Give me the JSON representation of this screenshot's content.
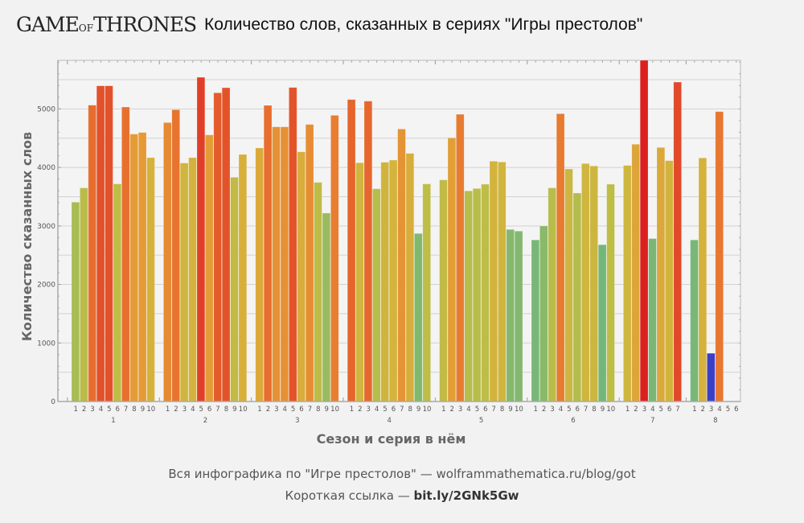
{
  "header": {
    "logo_text": "GAME OF THRONES",
    "title": "Количество слов, сказанных в сериях \"Игры престолов\""
  },
  "footer": {
    "line1": "Вся инфографика по \"Игре престолов\" — wolframmathematica.ru/blog/got",
    "line2_prefix": "Короткая ссылка — ",
    "line2_link": "bit.ly/2GNk5Gw"
  },
  "chart_data": {
    "type": "bar",
    "title": "Количество слов, сказанных в сериях \"Игры престолов\"",
    "xlabel": "Сезон и серия в нём",
    "ylabel": "Количество сказанных слов",
    "ylim": [
      0,
      5830
    ],
    "yticks": [
      0,
      1000,
      2000,
      3000,
      4000,
      5000
    ],
    "grid": true,
    "seasons": [
      {
        "label": "1",
        "episodes": [
          "1",
          "2",
          "3",
          "4",
          "5",
          "6",
          "7",
          "8",
          "9",
          "10"
        ],
        "values": [
          3407,
          3650,
          5064,
          5394,
          5394,
          3718,
          5032,
          4570,
          4597,
          4167
        ]
      },
      {
        "label": "2",
        "episodes": [
          "1",
          "2",
          "3",
          "4",
          "5",
          "6",
          "7",
          "8",
          "9",
          "10"
        ],
        "values": [
          4766,
          4986,
          4075,
          4167,
          5540,
          4556,
          5275,
          5362,
          3832,
          4222
        ]
      },
      {
        "label": "3",
        "episodes": [
          "1",
          "2",
          "3",
          "4",
          "5",
          "6",
          "7",
          "8",
          "9",
          "10"
        ],
        "values": [
          4332,
          5060,
          4693,
          4693,
          5366,
          4267,
          4734,
          3745,
          3219,
          4890
        ]
      },
      {
        "label": "4",
        "episodes": [
          "1",
          "2",
          "3",
          "4",
          "5",
          "6",
          "7",
          "8",
          "9",
          "10"
        ],
        "values": [
          5160,
          4080,
          5133,
          3635,
          4089,
          4125,
          4657,
          4240,
          2871,
          3718
        ]
      },
      {
        "label": "5",
        "episodes": [
          "1",
          "2",
          "3",
          "4",
          "5",
          "6",
          "7",
          "8",
          "9",
          "10"
        ],
        "values": [
          3787,
          4505,
          4908,
          3599,
          3640,
          3713,
          4107,
          4093,
          2940,
          2912
        ]
      },
      {
        "label": "6",
        "episodes": [
          "1",
          "2",
          "3",
          "4",
          "5",
          "6",
          "7",
          "8",
          "9",
          "10"
        ],
        "values": [
          2761,
          2999,
          3650,
          4918,
          3974,
          3562,
          4066,
          4025,
          2679,
          3713
        ]
      },
      {
        "label": "7",
        "episodes": [
          "1",
          "2",
          "3",
          "4",
          "5",
          "6",
          "7"
        ],
        "values": [
          4034,
          4396,
          5830,
          2784,
          4341,
          4116,
          5458
        ]
      },
      {
        "label": "8",
        "episodes": [
          "1",
          "2",
          "3",
          "4",
          "5",
          "6"
        ],
        "values": [
          2761,
          4162,
          824,
          4954,
          null,
          null
        ]
      }
    ],
    "highlight": {
      "season": "8",
      "episode": "3",
      "color": "#3b3fc8"
    },
    "color_scale": [
      {
        "value": 2700,
        "color": "#74b67a"
      },
      {
        "value": 3300,
        "color": "#9fbc58"
      },
      {
        "value": 3700,
        "color": "#bcbd48"
      },
      {
        "value": 4150,
        "color": "#d4b33c"
      },
      {
        "value": 4600,
        "color": "#e59a36"
      },
      {
        "value": 5000,
        "color": "#e8732f"
      },
      {
        "value": 5400,
        "color": "#e2502a"
      },
      {
        "value": 5800,
        "color": "#dc2020"
      }
    ]
  }
}
